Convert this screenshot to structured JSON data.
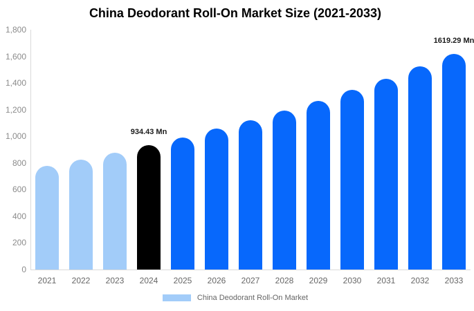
{
  "header": {
    "title": "China Deodorant Roll-On Market Size (2021-2033)"
  },
  "chart_data": {
    "type": "bar",
    "title": "China Deodorant Roll-On Market Size (2021-2033)",
    "unit": "Mn",
    "categories": [
      "2021",
      "2022",
      "2023",
      "2024",
      "2025",
      "2026",
      "2027",
      "2028",
      "2029",
      "2030",
      "2031",
      "2032",
      "2033"
    ],
    "values": [
      778,
      827,
      879,
      934.43,
      993,
      1056,
      1122,
      1193,
      1268,
      1348,
      1433,
      1523,
      1619.29
    ],
    "bar_colors": [
      "#a2ccf9",
      "#a2ccf9",
      "#a2ccf9",
      "#000000",
      "#0768fc",
      "#0768fc",
      "#0768fc",
      "#0768fc",
      "#0768fc",
      "#0768fc",
      "#0768fc",
      "#0768fc",
      "#0768fc"
    ],
    "xlabel": "",
    "ylabel": "",
    "ylim": [
      0,
      1800
    ],
    "grid": false,
    "y_ticks": [
      {
        "value": 0,
        "label": "0"
      },
      {
        "value": 200,
        "label": "200"
      },
      {
        "value": 400,
        "label": "400"
      },
      {
        "value": 600,
        "label": "600"
      },
      {
        "value": 800,
        "label": "800"
      },
      {
        "value": 1000,
        "label": "1,000"
      },
      {
        "value": 1200,
        "label": "1,200"
      },
      {
        "value": 1400,
        "label": "1,400"
      },
      {
        "value": 1600,
        "label": "1,600"
      },
      {
        "value": 1800,
        "label": "1,800"
      }
    ],
    "annotations": [
      {
        "category": "2024",
        "text": "934.43 Mn"
      },
      {
        "category": "2033",
        "text": "1619.29 Mn"
      }
    ],
    "legend": {
      "position": "bottom",
      "label": "China Deodorant Roll-On Market",
      "color": "#a2ccf9"
    }
  },
  "colors": {
    "axis_line": "#d9d9d9",
    "y_tick_label": "#8b8b8b",
    "x_tick_label": "#666666",
    "annotation_text": "#1a1a1a",
    "background": "#ffffff"
  }
}
